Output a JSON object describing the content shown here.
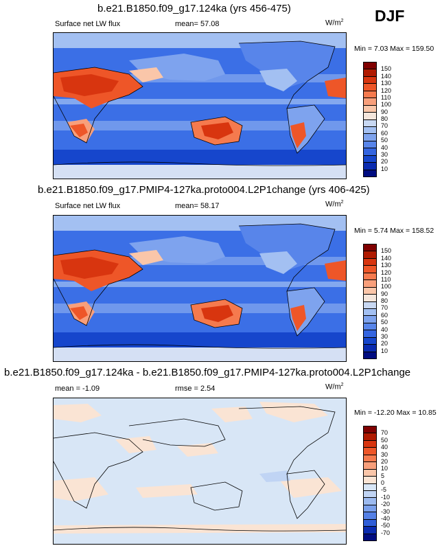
{
  "season": "DJF",
  "panels": [
    {
      "title": "b.e21.B1850.f09_g17.124ka (yrs 456-475)",
      "variable": "Surface net LW flux",
      "stat_text": "mean=  57.08",
      "units": "W/m",
      "units_exp": "2",
      "minmax": "Min =   7.03 Max = 159.50",
      "levels": [
        "150",
        "140",
        "130",
        "120",
        "110",
        "100",
        "90",
        "80",
        "70",
        "60",
        "50",
        "40",
        "30",
        "20",
        "10"
      ],
      "colors": [
        "#800000",
        "#b01a00",
        "#d8350f",
        "#ee5628",
        "#f57a4e",
        "#f89f7b",
        "#fac6a9",
        "#f4e6dc",
        "#c8d8f2",
        "#a3c0f2",
        "#7ea3ee",
        "#5885ea",
        "#3465e0",
        "#1646cc",
        "#0a2bb0",
        "#000c80"
      ],
      "map_bg": "#3b6fe6"
    },
    {
      "title": "b.e21.B1850.f09_g17.PMIP4-127ka.proto004.L2P1change (yrs 406-425)",
      "variable": "Surface net LW flux",
      "stat_text": "mean=  58.17",
      "units": "W/m",
      "units_exp": "2",
      "minmax": "Min =   5.74 Max = 158.52",
      "levels": [
        "150",
        "140",
        "130",
        "120",
        "110",
        "100",
        "90",
        "80",
        "70",
        "60",
        "50",
        "40",
        "30",
        "20",
        "10"
      ],
      "colors": [
        "#800000",
        "#b01a00",
        "#d8350f",
        "#ee5628",
        "#f57a4e",
        "#f89f7b",
        "#fac6a9",
        "#f4e6dc",
        "#c8d8f2",
        "#a3c0f2",
        "#7ea3ee",
        "#5885ea",
        "#3465e0",
        "#1646cc",
        "#0a2bb0",
        "#000c80"
      ],
      "map_bg": "#3b6fe6"
    },
    {
      "title": "b.e21.B1850.f09_g17.124ka - b.e21.B1850.f09_g17.PMIP4-127ka.proto004.L2P1change",
      "stat_text": "mean =  -1.09",
      "stat2_text": "rmse =  2.54",
      "units": "W/m",
      "units_exp": "2",
      "minmax": "Min = -12.20 Max =  10.85",
      "levels": [
        "70",
        "50",
        "40",
        "30",
        "20",
        "10",
        "5",
        "0",
        "-5",
        "-10",
        "-20",
        "-30",
        "-40",
        "-50",
        "-70"
      ],
      "colors": [
        "#800000",
        "#b01a00",
        "#d8350f",
        "#ee5628",
        "#f57a4e",
        "#f89f7b",
        "#fac6a9",
        "#fae4d4",
        "#d8e6f6",
        "#c0d4f4",
        "#9cbaf0",
        "#7aa0ec",
        "#5480e6",
        "#2f5ed8",
        "#0a2bb0",
        "#000c80"
      ],
      "map_bg": "#d8e6f6"
    }
  ]
}
